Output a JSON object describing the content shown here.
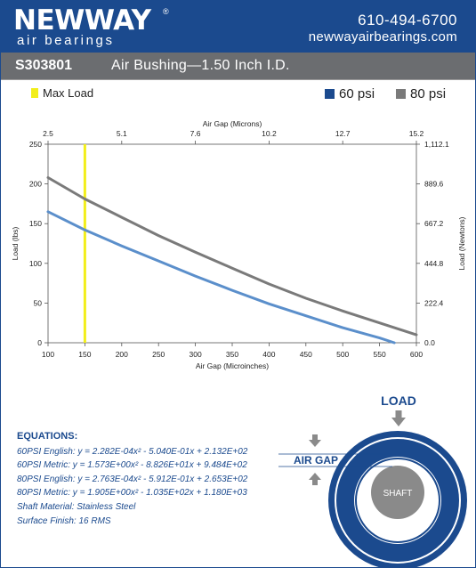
{
  "header": {
    "logo_main": "NEWWAY",
    "logo_reg": "®",
    "logo_sub": "air bearings",
    "phone": "610-494-6700",
    "website": "newwayairbearings.com"
  },
  "title_bar": {
    "part_number": "S303801",
    "title": "Air Bushing—1.50 Inch I.D."
  },
  "legend": {
    "max_load": "Max Load",
    "series_60": "60 psi",
    "series_80": "80 psi"
  },
  "colors": {
    "brand_blue": "#1b4a8e",
    "title_gray": "#6b6d70",
    "series_60": "#5b8fcb",
    "series_80": "#7a7a7a",
    "max_load": "#f2ee1a"
  },
  "chart_data": {
    "type": "line",
    "xlabel": "Air Gap (Microinches)",
    "x2label": "Air Gap (Microns)",
    "ylabel": "Load (lbs)",
    "y2label": "Load (Newtons)",
    "xlim": [
      100,
      600
    ],
    "ylim": [
      0,
      250
    ],
    "x_ticks": [
      100,
      150,
      200,
      250,
      300,
      350,
      400,
      450,
      500,
      550,
      600
    ],
    "y_ticks": [
      0,
      50,
      100,
      150,
      200,
      250
    ],
    "x2_tick_labels": [
      "2.5",
      "5.1",
      "7.6",
      "10.2",
      "12.7",
      "15.2"
    ],
    "y2_tick_labels": [
      "0.0",
      "222.4",
      "444.8",
      "667.2",
      "889.6",
      "1,112.1"
    ],
    "max_load_x": 150,
    "series": [
      {
        "name": "60 psi",
        "x": [
          100,
          150,
          200,
          250,
          300,
          350,
          400,
          450,
          500,
          550,
          570
        ],
        "values": [
          165,
          142,
          122,
          103,
          84,
          66,
          49,
          34,
          19,
          6,
          0
        ]
      },
      {
        "name": "80 psi",
        "x": [
          100,
          150,
          200,
          250,
          300,
          350,
          400,
          450,
          500,
          550,
          600
        ],
        "values": [
          208,
          181,
          158,
          135,
          114,
          94,
          74,
          56,
          40,
          25,
          10
        ]
      }
    ]
  },
  "equations": {
    "title": "EQUATIONS:",
    "lines": [
      "60PSI English:  y = 2.282E-04x² - 5.040E-01x + 2.132E+02",
      "60PSI Metric:  y = 1.573E+00x² - 8.826E+01x + 9.484E+02",
      "80PSI English:  y = 2.763E-04x² - 5.912E-01x + 2.653E+02",
      "80PSI Metric:  y = 1.905E+00x² - 1.035E+02x + 1.180E+03",
      "Shaft Material:  Stainless Steel",
      "Surface Finish:  16 RMS"
    ]
  },
  "diagram": {
    "load_label": "LOAD",
    "air_gap_label": "AIR GAP",
    "shaft_label": "SHAFT"
  }
}
